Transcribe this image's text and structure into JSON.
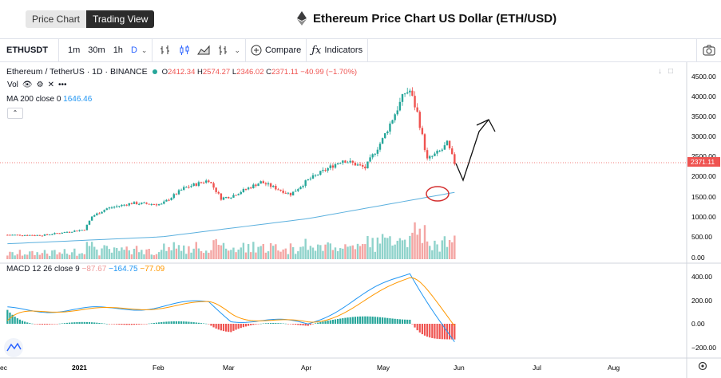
{
  "tabs": [
    {
      "label": "Price Chart",
      "active": false
    },
    {
      "label": "Trading View",
      "active": true
    }
  ],
  "page_title": "Ethereum Price Chart US Dollar (ETH/USD)",
  "toolbar": {
    "symbol": "ETHUSDT",
    "timeframes": [
      "1m",
      "30m",
      "1h",
      "D"
    ],
    "selected_timeframe": "D",
    "compare_label": "Compare",
    "indicators_label": "Indicators",
    "icons": [
      "bars-icon",
      "candles-icon",
      "area-icon",
      "alert-icon",
      "camera-icon"
    ]
  },
  "legend": {
    "pair": "Ethereum / TetherUS · 1D · BINANCE",
    "o_label": "O",
    "o": "2412.34",
    "h_label": "H",
    "h": "2574.27",
    "l_label": "L",
    "l": "2346.02",
    "c_label": "C",
    "c": "2371.11",
    "change": "−40.99 (−1.70%)",
    "vol_label": "Vol",
    "ma_label": "MA 200 close 0",
    "ma_value": "1646.46",
    "macd_label": "MACD 12 26 close 9",
    "macd_hist": "−87.67",
    "macd_line": "−164.75",
    "macd_signal": "−77.09"
  },
  "price_axis": [
    "4500.00",
    "4000.00",
    "3500.00",
    "3000.00",
    "2500.00",
    "2000.00",
    "1500.00",
    "1000.00",
    "500.00",
    "0.00"
  ],
  "last_price_tag": "2371.11",
  "macd_axis": [
    "400.00",
    "200.00",
    "0.00",
    "−200.00"
  ],
  "time_axis": [
    "ec",
    "2021",
    "Feb",
    "Mar",
    "Apr",
    "May",
    "Jun",
    "Jul",
    "Aug"
  ],
  "colors": {
    "up": "#26a69a",
    "down": "#ef5350",
    "ma": "#5bb0de",
    "macd": "#2196f3",
    "signal": "#ff9800",
    "annotation": "#d32f2f"
  },
  "chart_data": {
    "type": "candlestick",
    "symbol": "ETHUSDT",
    "interval": "1D",
    "x_ticks": [
      "Dec",
      "2021",
      "Feb",
      "Mar",
      "Apr",
      "May",
      "Jun",
      "Jul",
      "Aug"
    ],
    "price_ylim": [
      0,
      4500
    ],
    "close_approx": [
      {
        "date": "2020-12-01",
        "close": 600
      },
      {
        "date": "2020-12-15",
        "close": 590
      },
      {
        "date": "2021-01-01",
        "close": 730
      },
      {
        "date": "2021-01-04",
        "close": 1050
      },
      {
        "date": "2021-01-10",
        "close": 1250
      },
      {
        "date": "2021-01-20",
        "close": 1380
      },
      {
        "date": "2021-02-01",
        "close": 1350
      },
      {
        "date": "2021-02-10",
        "close": 1750
      },
      {
        "date": "2021-02-20",
        "close": 1950
      },
      {
        "date": "2021-02-25",
        "close": 1500
      },
      {
        "date": "2021-03-01",
        "close": 1550
      },
      {
        "date": "2021-03-13",
        "close": 1900
      },
      {
        "date": "2021-03-25",
        "close": 1600
      },
      {
        "date": "2021-04-01",
        "close": 1950
      },
      {
        "date": "2021-04-15",
        "close": 2450
      },
      {
        "date": "2021-04-24",
        "close": 2250
      },
      {
        "date": "2021-05-01",
        "close": 2950
      },
      {
        "date": "2021-05-10",
        "close": 4100
      },
      {
        "date": "2021-05-12",
        "close": 4150
      },
      {
        "date": "2021-05-15",
        "close": 3600
      },
      {
        "date": "2021-05-19",
        "close": 2450
      },
      {
        "date": "2021-05-25",
        "close": 2700
      },
      {
        "date": "2021-05-27",
        "close": 2850
      },
      {
        "date": "2021-05-30",
        "close": 2371
      }
    ],
    "ma200_approx": [
      {
        "date": "2020-12-01",
        "value": 380
      },
      {
        "date": "2021-02-01",
        "value": 550
      },
      {
        "date": "2021-04-01",
        "value": 1000
      },
      {
        "date": "2021-05-30",
        "value": 1646
      }
    ],
    "macd_approx": [
      {
        "date": "2021-01-10",
        "macd": 120
      },
      {
        "date": "2021-02-20",
        "macd": 180
      },
      {
        "date": "2021-03-01",
        "macd": 40
      },
      {
        "date": "2021-04-01",
        "macd": 0
      },
      {
        "date": "2021-05-12",
        "macd": 440
      },
      {
        "date": "2021-05-30",
        "macd": -165
      }
    ],
    "macd_ylim": [
      -250,
      450
    ]
  }
}
